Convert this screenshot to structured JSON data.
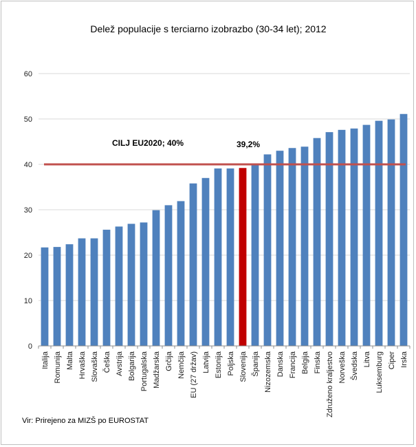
{
  "chart_data": {
    "type": "bar",
    "title": "Delež populacije s terciarno izobrazbo (30-34 let); 2012",
    "xlabel": "",
    "ylabel": "",
    "ylim": [
      0,
      60
    ],
    "yticks": [
      0,
      10,
      20,
      30,
      40,
      50,
      60
    ],
    "categories": [
      "Italija",
      "Romunija",
      "Malta",
      "Hrvaška",
      "Slovaška",
      "Češka",
      "Avstrija",
      "Bolgarija",
      "Portugalska",
      "Madžarska",
      "Grčija",
      "Nemčija",
      "EU (27 držav)",
      "Latvija",
      "Estonija",
      "Poljska",
      "Slovenija",
      "Španija",
      "Nizozemska",
      "Danska",
      "Francija",
      "Belgija",
      "Finska",
      "Združeno kraljestvo",
      "Norveška",
      "Švedska",
      "Litva",
      "Luksemburg",
      "Ciper",
      "Irska"
    ],
    "values": [
      21.7,
      21.8,
      22.4,
      23.7,
      23.7,
      25.6,
      26.3,
      26.9,
      27.2,
      29.9,
      31.0,
      31.9,
      35.8,
      37.0,
      39.1,
      39.1,
      39.2,
      40.1,
      42.2,
      43.0,
      43.6,
      43.9,
      45.8,
      47.1,
      47.6,
      47.9,
      48.7,
      49.6,
      49.9,
      51.1
    ],
    "highlight_category": "Slovenija",
    "target_line": {
      "value": 40,
      "label": "CILJ EU2020; 40%"
    },
    "highlight_label": "39,2%",
    "grid": true,
    "legend": "none",
    "colors": {
      "bar": "#4f81bd",
      "highlight": "#c00000",
      "target_line": "#c0504d",
      "grid": "#d9d9d9"
    }
  },
  "source_note": "Vir: Prirejeno za MIZŠ po EUROSTAT"
}
